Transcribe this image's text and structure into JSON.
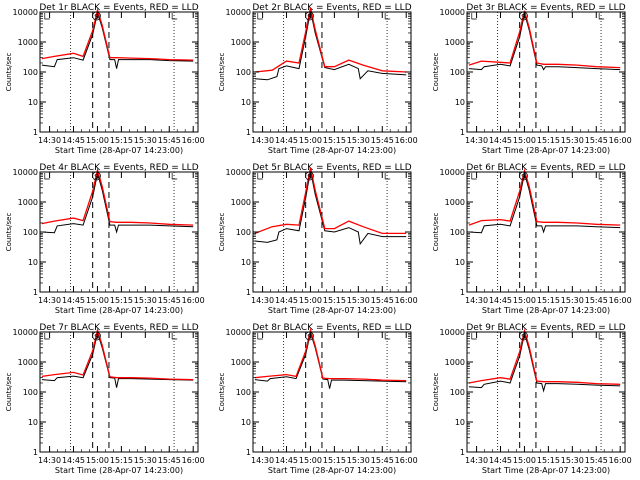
{
  "colors": {
    "background": "#ffffff",
    "events": "#000000",
    "lld": "#ff0000",
    "axes": "#000000"
  },
  "chart_data": [
    {
      "type": "line",
      "title": "Det 1r BLACK = Events, RED = LLD",
      "xlabel": "Start Time (28-Apr-07 14:23:00)",
      "ylabel": "Counts/sec",
      "yscale": "log",
      "ylim": [
        1,
        10000
      ],
      "x_ticks": [
        "14:30",
        "14:45",
        "15:00",
        "15:15",
        "15:30",
        "15:45",
        "16:00"
      ],
      "y_ticks": [
        "1",
        "10",
        "100",
        "1000",
        "10000"
      ],
      "marker_label": "S",
      "series": [
        {
          "name": "BLACK = Events",
          "color": "#000000",
          "x": [
            14.42,
            14.55,
            14.58,
            14.75,
            14.85,
            14.95,
            15.0,
            15.05,
            15.13,
            15.18,
            15.2,
            15.22,
            15.35,
            15.55,
            15.75,
            16.0
          ],
          "y": [
            170,
            150,
            260,
            300,
            250,
            1800,
            9500,
            3000,
            260,
            260,
            130,
            260,
            260,
            260,
            240,
            230
          ]
        },
        {
          "name": "RED = LLD",
          "color": "#ff0000",
          "x": [
            14.42,
            14.55,
            14.75,
            14.85,
            14.95,
            15.0,
            15.05,
            15.13,
            15.2,
            15.35,
            15.55,
            15.75,
            16.0
          ],
          "y": [
            280,
            330,
            420,
            330,
            2400,
            11500,
            3600,
            300,
            300,
            290,
            280,
            260,
            250
          ]
        }
      ],
      "vlines_dashed": [
        14.95,
        15.12
      ],
      "vlines_dotted": [
        14.72,
        15.8
      ]
    },
    {
      "type": "line",
      "title": "Det 2r BLACK = Events, RED = LLD",
      "xlabel": "Start Time (28-Apr-07 14:23:00)",
      "ylabel": "Counts/sec",
      "yscale": "log",
      "ylim": [
        1,
        10000
      ],
      "x_ticks": [
        "14:30",
        "14:45",
        "15:00",
        "15:15",
        "15:30",
        "15:45",
        "16:00"
      ],
      "y_ticks": [
        "1",
        "10",
        "100",
        "1000",
        "10000"
      ],
      "marker_label": "S",
      "series": [
        {
          "name": "BLACK = Events",
          "color": "#000000",
          "x": [
            14.42,
            14.55,
            14.65,
            14.67,
            14.75,
            14.88,
            14.95,
            15.0,
            15.05,
            15.15,
            15.25,
            15.4,
            15.5,
            15.52,
            15.6,
            15.75,
            16.0
          ],
          "y": [
            60,
            55,
            70,
            130,
            160,
            130,
            1500,
            11000,
            2000,
            140,
            120,
            180,
            130,
            60,
            110,
            90,
            80
          ]
        },
        {
          "name": "RED = LLD",
          "color": "#ff0000",
          "x": [
            14.42,
            14.6,
            14.75,
            14.88,
            14.95,
            15.0,
            15.05,
            15.15,
            15.25,
            15.4,
            15.55,
            15.75,
            16.0
          ],
          "y": [
            100,
            115,
            230,
            200,
            2200,
            14000,
            2600,
            150,
            150,
            250,
            170,
            110,
            100
          ]
        }
      ],
      "vlines_dashed": [
        14.95,
        15.12
      ],
      "vlines_dotted": [
        14.72,
        15.8
      ]
    },
    {
      "type": "line",
      "title": "Det 3r BLACK = Events, RED = LLD",
      "xlabel": "Start Time (28-Apr-07 14:23:00)",
      "ylabel": "Counts/sec",
      "yscale": "log",
      "ylim": [
        1,
        10000
      ],
      "x_ticks": [
        "14:30",
        "14:45",
        "15:00",
        "15:15",
        "15:30",
        "15:45",
        "16:00"
      ],
      "y_ticks": [
        "1",
        "10",
        "100",
        "1000",
        "10000"
      ],
      "marker_label": "S",
      "series": [
        {
          "name": "BLACK = Events",
          "color": "#000000",
          "x": [
            14.42,
            14.55,
            14.58,
            14.75,
            14.85,
            14.95,
            15.0,
            15.05,
            15.13,
            15.18,
            15.2,
            15.22,
            15.35,
            15.55,
            15.75,
            16.0
          ],
          "y": [
            130,
            120,
            150,
            180,
            160,
            1500,
            9000,
            2500,
            170,
            160,
            120,
            150,
            150,
            140,
            130,
            120
          ]
        },
        {
          "name": "RED = LLD",
          "color": "#ff0000",
          "x": [
            14.42,
            14.55,
            14.75,
            14.85,
            14.95,
            15.0,
            15.05,
            15.13,
            15.2,
            15.35,
            15.55,
            15.75,
            16.0
          ],
          "y": [
            170,
            230,
            210,
            200,
            2200,
            11000,
            3000,
            200,
            180,
            180,
            170,
            150,
            140
          ]
        }
      ],
      "vlines_dashed": [
        14.95,
        15.12
      ],
      "vlines_dotted": [
        14.72,
        15.8
      ]
    },
    {
      "type": "line",
      "title": "Det 4r BLACK = Events, RED = LLD",
      "xlabel": "Start Time (28-Apr-07 14:23:00)",
      "ylabel": "Counts/sec",
      "yscale": "log",
      "ylim": [
        1,
        10000
      ],
      "x_ticks": [
        "14:30",
        "14:45",
        "15:00",
        "15:15",
        "15:30",
        "15:45",
        "16:00"
      ],
      "y_ticks": [
        "1",
        "10",
        "100",
        "1000",
        "10000"
      ],
      "marker_label": "S",
      "series": [
        {
          "name": "BLACK = Events",
          "color": "#000000",
          "x": [
            14.42,
            14.55,
            14.58,
            14.75,
            14.85,
            14.95,
            15.0,
            15.05,
            15.13,
            15.18,
            15.2,
            15.22,
            15.35,
            15.55,
            15.75,
            16.0
          ],
          "y": [
            100,
            95,
            160,
            190,
            170,
            1500,
            9000,
            2500,
            170,
            170,
            100,
            170,
            170,
            170,
            160,
            150
          ]
        },
        {
          "name": "RED = LLD",
          "color": "#ff0000",
          "x": [
            14.42,
            14.55,
            14.75,
            14.85,
            14.95,
            15.0,
            15.05,
            15.13,
            15.2,
            15.35,
            15.55,
            15.75,
            16.0
          ],
          "y": [
            190,
            230,
            290,
            240,
            2300,
            11500,
            3300,
            220,
            210,
            210,
            200,
            180,
            170
          ]
        }
      ],
      "vlines_dashed": [
        14.95,
        15.12
      ],
      "vlines_dotted": [
        14.72,
        15.8
      ]
    },
    {
      "type": "line",
      "title": "Det 5r BLACK = Events, RED = LLD",
      "xlabel": "Start Time (28-Apr-07 14:23:00)",
      "ylabel": "Counts/sec",
      "yscale": "log",
      "ylim": [
        1,
        10000
      ],
      "x_ticks": [
        "14:30",
        "14:45",
        "15:00",
        "15:15",
        "15:30",
        "15:45",
        "16:00"
      ],
      "y_ticks": [
        "1",
        "10",
        "100",
        "1000",
        "10000"
      ],
      "marker_label": "S",
      "series": [
        {
          "name": "BLACK = Events",
          "color": "#000000",
          "x": [
            14.42,
            14.55,
            14.65,
            14.67,
            14.75,
            14.88,
            14.95,
            15.0,
            15.05,
            15.15,
            15.25,
            15.4,
            15.5,
            15.52,
            15.6,
            15.75,
            16.0
          ],
          "y": [
            50,
            45,
            55,
            100,
            130,
            110,
            1400,
            11000,
            1800,
            110,
            100,
            140,
            100,
            40,
            90,
            70,
            70
          ]
        },
        {
          "name": "RED = LLD",
          "color": "#ff0000",
          "x": [
            14.42,
            14.6,
            14.75,
            14.88,
            14.95,
            15.0,
            15.05,
            15.15,
            15.25,
            15.4,
            15.55,
            15.75,
            16.0
          ],
          "y": [
            90,
            150,
            180,
            170,
            2100,
            14000,
            2500,
            130,
            130,
            230,
            150,
            90,
            90
          ]
        }
      ],
      "vlines_dashed": [
        14.95,
        15.12
      ],
      "vlines_dotted": [
        14.72,
        15.8
      ]
    },
    {
      "type": "line",
      "title": "Det 6r BLACK = Events, RED = LLD",
      "xlabel": "Start Time (28-Apr-07 14:23:00)",
      "ylabel": "Counts/sec",
      "yscale": "log",
      "ylim": [
        1,
        10000
      ],
      "x_ticks": [
        "14:30",
        "14:45",
        "15:00",
        "15:15",
        "15:30",
        "15:45",
        "16:00"
      ],
      "y_ticks": [
        "1",
        "10",
        "100",
        "1000",
        "10000"
      ],
      "marker_label": "S",
      "series": [
        {
          "name": "BLACK = Events",
          "color": "#000000",
          "x": [
            14.42,
            14.55,
            14.58,
            14.75,
            14.85,
            14.95,
            15.0,
            15.05,
            15.13,
            15.18,
            15.2,
            15.22,
            15.35,
            15.55,
            15.75,
            16.0
          ],
          "y": [
            100,
            95,
            160,
            180,
            160,
            1500,
            9000,
            2500,
            160,
            160,
            100,
            160,
            160,
            160,
            150,
            140
          ]
        },
        {
          "name": "RED = LLD",
          "color": "#ff0000",
          "x": [
            14.42,
            14.55,
            14.75,
            14.85,
            14.95,
            15.0,
            15.05,
            15.13,
            15.2,
            15.35,
            15.55,
            15.75,
            16.0
          ],
          "y": [
            170,
            240,
            260,
            230,
            2300,
            11000,
            3300,
            220,
            210,
            210,
            200,
            180,
            170
          ]
        }
      ],
      "vlines_dashed": [
        14.95,
        15.12
      ],
      "vlines_dotted": [
        14.72,
        15.8
      ]
    },
    {
      "type": "line",
      "title": "Det 7r BLACK = Events, RED = LLD",
      "xlabel": "Start Time (28-Apr-07 14:23:00)",
      "ylabel": "Counts/sec",
      "yscale": "log",
      "ylim": [
        1,
        10000
      ],
      "x_ticks": [
        "14:30",
        "14:45",
        "15:00",
        "15:15",
        "15:30",
        "15:45",
        "16:00"
      ],
      "y_ticks": [
        "1",
        "10",
        "100",
        "1000",
        "10000"
      ],
      "marker_label": "S",
      "series": [
        {
          "name": "BLACK = Events",
          "color": "#000000",
          "x": [
            14.42,
            14.55,
            14.58,
            14.75,
            14.85,
            14.95,
            15.0,
            15.05,
            15.13,
            15.18,
            15.2,
            15.22,
            15.35,
            15.55,
            15.75,
            16.0
          ],
          "y": [
            260,
            240,
            300,
            340,
            300,
            1800,
            9500,
            3000,
            300,
            290,
            140,
            280,
            280,
            270,
            260,
            250
          ]
        },
        {
          "name": "RED = LLD",
          "color": "#ff0000",
          "x": [
            14.42,
            14.55,
            14.75,
            14.85,
            14.95,
            15.0,
            15.05,
            15.13,
            15.2,
            15.35,
            15.55,
            15.75,
            16.0
          ],
          "y": [
            330,
            380,
            450,
            370,
            2400,
            11500,
            3600,
            320,
            300,
            300,
            290,
            270,
            260
          ]
        }
      ],
      "vlines_dashed": [
        14.95,
        15.12
      ],
      "vlines_dotted": [
        14.72,
        15.8
      ]
    },
    {
      "type": "line",
      "title": "Det 8r BLACK = Events, RED = LLD",
      "xlabel": "Start Time (28-Apr-07 14:23:00)",
      "ylabel": "Counts/sec",
      "yscale": "log",
      "ylim": [
        1,
        10000
      ],
      "x_ticks": [
        "14:30",
        "14:45",
        "15:00",
        "15:15",
        "15:30",
        "15:45",
        "16:00"
      ],
      "y_ticks": [
        "1",
        "10",
        "100",
        "1000",
        "10000"
      ],
      "marker_label": "S",
      "series": [
        {
          "name": "BLACK = Events",
          "color": "#000000",
          "x": [
            14.42,
            14.55,
            14.58,
            14.75,
            14.85,
            14.95,
            15.0,
            15.05,
            15.13,
            15.18,
            15.2,
            15.22,
            15.35,
            15.55,
            15.75,
            16.0
          ],
          "y": [
            260,
            230,
            280,
            320,
            280,
            1800,
            9500,
            3000,
            270,
            260,
            130,
            250,
            250,
            240,
            230,
            220
          ]
        },
        {
          "name": "RED = LLD",
          "color": "#ff0000",
          "x": [
            14.42,
            14.55,
            14.75,
            14.85,
            14.95,
            15.0,
            15.05,
            15.13,
            15.2,
            15.35,
            15.55,
            15.75,
            16.0
          ],
          "y": [
            300,
            330,
            380,
            330,
            2300,
            11500,
            3500,
            290,
            280,
            280,
            270,
            250,
            240
          ]
        }
      ],
      "vlines_dashed": [
        14.95,
        15.12
      ],
      "vlines_dotted": [
        14.72,
        15.8
      ]
    },
    {
      "type": "line",
      "title": "Det 9r BLACK = Events, RED = LLD",
      "xlabel": "Start Time (28-Apr-07 14:23:00)",
      "ylabel": "Counts/sec",
      "yscale": "log",
      "ylim": [
        1,
        10000
      ],
      "x_ticks": [
        "14:30",
        "14:45",
        "15:00",
        "15:15",
        "15:30",
        "15:45",
        "16:00"
      ],
      "y_ticks": [
        "1",
        "10",
        "100",
        "1000",
        "10000"
      ],
      "marker_label": "S",
      "series": [
        {
          "name": "BLACK = Events",
          "color": "#000000",
          "x": [
            14.42,
            14.55,
            14.58,
            14.75,
            14.85,
            14.95,
            15.0,
            15.05,
            15.13,
            15.18,
            15.2,
            15.22,
            15.35,
            15.55,
            15.75,
            16.0
          ],
          "y": [
            150,
            140,
            180,
            230,
            200,
            1600,
            9000,
            2600,
            200,
            190,
            110,
            190,
            190,
            180,
            170,
            160
          ]
        },
        {
          "name": "RED = LLD",
          "color": "#ff0000",
          "x": [
            14.42,
            14.55,
            14.75,
            14.85,
            14.95,
            15.0,
            15.05,
            15.13,
            15.2,
            15.35,
            15.55,
            15.75,
            16.0
          ],
          "y": [
            200,
            240,
            300,
            270,
            2200,
            11000,
            3200,
            230,
            220,
            220,
            210,
            190,
            180
          ]
        }
      ],
      "vlines_dashed": [
        14.95,
        15.12
      ],
      "vlines_dotted": [
        14.72,
        15.8
      ]
    }
  ]
}
